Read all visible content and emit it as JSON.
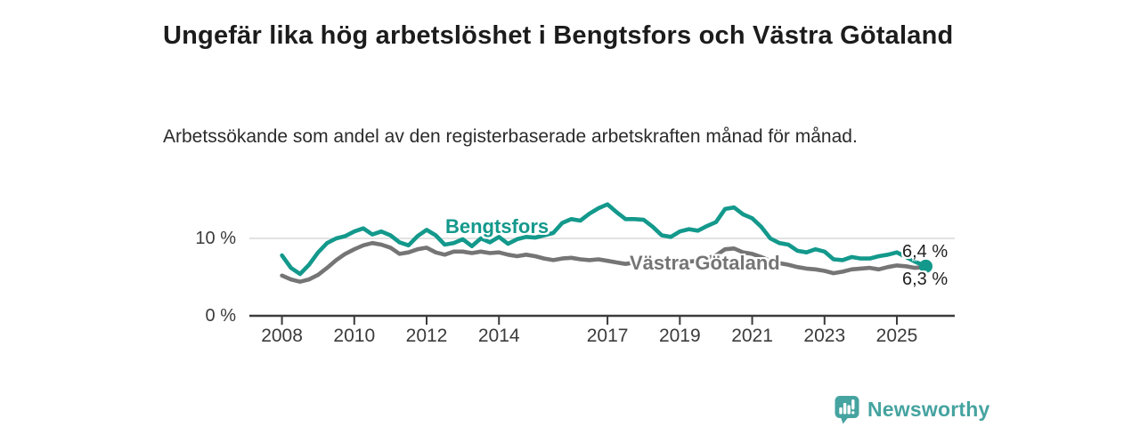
{
  "header": {
    "title": "Ungefär lika hög arbetslöshet i Bengtsfors och Västra Götaland",
    "subtitle": "Arbetssökande som andel av den registerbaserade arbetskraften månad för månad."
  },
  "chart_data": {
    "type": "line",
    "title": "Ungefär lika hög arbetslöshet i Bengtsfors och Västra Götaland",
    "subtitle": "Arbetssökande som andel av den registerbaserade arbetskraften månad för månad.",
    "unit": "%",
    "grid": "single horizontal gridline at 10 %",
    "legend_position": "inline labels on lines",
    "xlim": [
      2007.1,
      2026.6
    ],
    "ylim": [
      0,
      15.5
    ],
    "x_ticks": [
      2008,
      2010,
      2012,
      2014,
      2017,
      2019,
      2021,
      2023,
      2025
    ],
    "y_ticks": [
      {
        "value": 0,
        "label": "0 %"
      },
      {
        "value": 10,
        "label": "10 %"
      }
    ],
    "x": [
      2008.0,
      2008.25,
      2008.5,
      2008.75,
      2009.0,
      2009.25,
      2009.5,
      2009.75,
      2010.0,
      2010.25,
      2010.5,
      2010.75,
      2011.0,
      2011.25,
      2011.5,
      2011.75,
      2012.0,
      2012.25,
      2012.5,
      2012.75,
      2013.0,
      2013.25,
      2013.5,
      2013.75,
      2014.0,
      2014.25,
      2014.5,
      2014.75,
      2015.0,
      2015.25,
      2015.5,
      2015.75,
      2016.0,
      2016.25,
      2016.5,
      2016.75,
      2017.0,
      2017.25,
      2017.5,
      2017.75,
      2018.0,
      2018.25,
      2018.5,
      2018.75,
      2019.0,
      2019.25,
      2019.5,
      2019.75,
      2020.0,
      2020.25,
      2020.5,
      2020.75,
      2021.0,
      2021.25,
      2021.5,
      2021.75,
      2022.0,
      2022.25,
      2022.5,
      2022.75,
      2023.0,
      2023.25,
      2023.5,
      2023.75,
      2024.0,
      2024.25,
      2024.5,
      2024.75,
      2025.0,
      2025.25,
      2025.5,
      2025.8
    ],
    "series": [
      {
        "name": "Bengtsfors",
        "color": "#13998c",
        "values": [
          7.8,
          6.2,
          5.4,
          6.6,
          8.2,
          9.4,
          10.0,
          10.3,
          10.9,
          11.3,
          10.5,
          10.9,
          10.4,
          9.5,
          9.1,
          10.3,
          11.1,
          10.4,
          9.2,
          9.4,
          9.9,
          9.0,
          10.0,
          9.5,
          10.2,
          9.3,
          9.9,
          10.2,
          10.1,
          10.4,
          10.7,
          12.0,
          12.5,
          12.3,
          13.2,
          13.9,
          14.4,
          13.4,
          12.5,
          12.5,
          12.4,
          11.5,
          10.4,
          10.2,
          10.9,
          11.2,
          11.0,
          11.6,
          12.1,
          13.8,
          14.0,
          13.1,
          12.6,
          11.5,
          10.0,
          9.4,
          9.2,
          8.4,
          8.2,
          8.6,
          8.3,
          7.3,
          7.2,
          7.6,
          7.4,
          7.4,
          7.7,
          7.9,
          8.2,
          7.6,
          7.0,
          6.4
        ]
      },
      {
        "name": "Västra Götaland",
        "color": "#757575",
        "values": [
          5.2,
          4.7,
          4.4,
          4.7,
          5.3,
          6.2,
          7.2,
          8.0,
          8.6,
          9.1,
          9.4,
          9.2,
          8.8,
          8.0,
          8.2,
          8.6,
          8.8,
          8.2,
          7.9,
          8.3,
          8.3,
          8.1,
          8.3,
          8.1,
          8.2,
          7.9,
          7.7,
          7.9,
          7.7,
          7.4,
          7.2,
          7.4,
          7.5,
          7.3,
          7.2,
          7.3,
          7.1,
          6.9,
          6.7,
          6.9,
          7.0,
          6.8,
          6.6,
          6.8,
          6.9,
          7.0,
          7.1,
          7.4,
          7.8,
          8.6,
          8.7,
          8.2,
          8.0,
          7.6,
          7.1,
          6.8,
          6.6,
          6.3,
          6.1,
          6.0,
          5.8,
          5.5,
          5.7,
          6.0,
          6.1,
          6.2,
          6.0,
          6.3,
          6.5,
          6.4,
          6.2,
          6.3
        ]
      }
    ],
    "end_labels": [
      {
        "series": "Bengtsfors",
        "label": "6,4 %"
      },
      {
        "series": "Västra Götaland",
        "label": "6,3 %"
      }
    ],
    "end_dot_series": "Bengtsfors"
  },
  "footer": {
    "brand": "Newsworthy"
  },
  "colors": {
    "bengtsfors_line": "#13998c",
    "vastra_gotaland_line": "#757575",
    "gridline": "#d8d8d8",
    "axis": "#3b3b3b",
    "brand_teal": "#45a3a0"
  }
}
